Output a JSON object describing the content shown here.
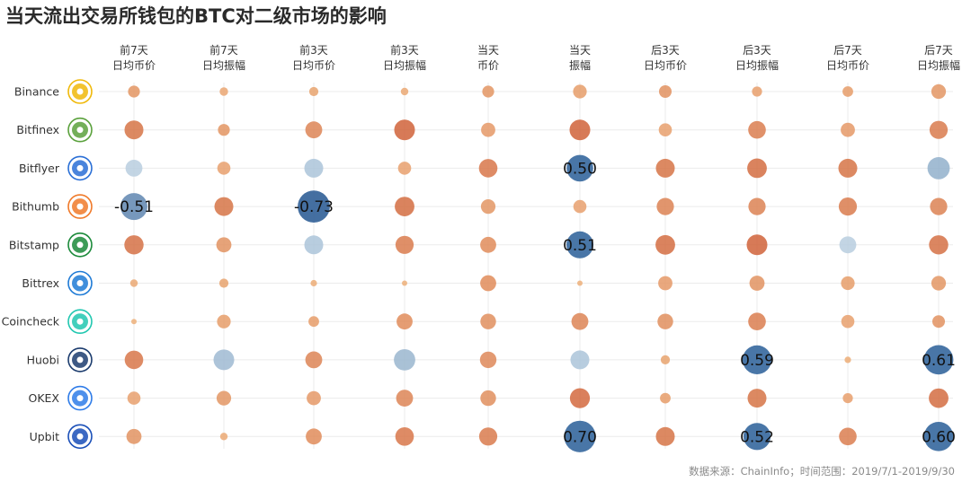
{
  "title": "当天流出交易所钱包的BTC对二级市场的影响",
  "source": "数据来源：ChainInfo；时间范围：2019/7/1-2019/9/30",
  "chart_data": {
    "type": "heatmap",
    "title": "当天流出交易所钱包的BTC对二级市场的影响",
    "columns": [
      {
        "lines": [
          "前7天",
          "日均币价"
        ]
      },
      {
        "lines": [
          "前7天",
          "日均振幅"
        ]
      },
      {
        "lines": [
          "前3天",
          "日均币价"
        ]
      },
      {
        "lines": [
          "前3天",
          "日均振幅"
        ]
      },
      {
        "lines": [
          "当天",
          "币价"
        ]
      },
      {
        "lines": [
          "当天",
          "振幅"
        ]
      },
      {
        "lines": [
          "后3天",
          "日均币价"
        ]
      },
      {
        "lines": [
          "后3天",
          "日均振幅"
        ]
      },
      {
        "lines": [
          "后7天",
          "日均币价"
        ]
      },
      {
        "lines": [
          "后7天",
          "日均振幅"
        ]
      }
    ],
    "rows": [
      {
        "name": "Binance",
        "icon": "binance-logo-icon",
        "icon_color": "#f0b90b",
        "values": [
          0.1,
          0.05,
          0.06,
          0.04,
          0.1,
          0.13,
          0.11,
          0.07,
          0.08,
          0.15
        ]
      },
      {
        "name": "Bitfinex",
        "icon": "bitfinex-logo-icon",
        "icon_color": "#5aa13c",
        "values": [
          0.25,
          0.1,
          0.2,
          0.3,
          0.14,
          0.3,
          0.12,
          0.22,
          0.14,
          0.23
        ]
      },
      {
        "name": "Bitflyer",
        "icon": "bitflyer-logo-icon",
        "icon_color": "#2a6fd6",
        "values": [
          -0.2,
          0.12,
          -0.25,
          0.12,
          0.24,
          0.5,
          0.25,
          0.27,
          0.25,
          -0.35
        ]
      },
      {
        "name": "Bithumb",
        "icon": "bithumb-logo-icon",
        "icon_color": "#f07a2a",
        "values": [
          -0.51,
          0.25,
          -0.73,
          0.27,
          0.15,
          0.12,
          0.21,
          0.21,
          0.23,
          0.21
        ]
      },
      {
        "name": "Bitstamp",
        "icon": "bitstamp-logo-icon",
        "icon_color": "#1b8a3a",
        "values": [
          0.26,
          0.16,
          -0.25,
          0.23,
          0.18,
          0.51,
          0.27,
          0.3,
          -0.2,
          0.26
        ]
      },
      {
        "name": "Bittrex",
        "icon": "bittrex-logo-icon",
        "icon_color": "#1f7bd6",
        "values": [
          0.04,
          0.06,
          0.03,
          0.02,
          0.18,
          0.02,
          0.14,
          0.16,
          0.13,
          0.15
        ]
      },
      {
        "name": "Coincheck",
        "icon": "coincheck-logo-icon",
        "icon_color": "#21c7b0",
        "values": [
          0.02,
          0.13,
          0.08,
          0.18,
          0.17,
          0.2,
          0.17,
          0.22,
          0.12,
          0.11
        ]
      },
      {
        "name": "Huobi",
        "icon": "huobi-logo-icon",
        "icon_color": "#1c3c6e",
        "values": [
          0.24,
          -0.3,
          0.2,
          -0.32,
          0.19,
          -0.25,
          0.06,
          0.59,
          0.03,
          0.61
        ]
      },
      {
        "name": "OKEX",
        "icon": "okex-logo-icon",
        "icon_color": "#2f7ce8",
        "values": [
          0.12,
          0.15,
          0.14,
          0.2,
          0.17,
          0.28,
          0.08,
          0.25,
          0.07,
          0.27
        ]
      },
      {
        "name": "Upbit",
        "icon": "upbit-logo-icon",
        "icon_color": "#1a4fb8",
        "values": [
          0.16,
          0.04,
          0.18,
          0.24,
          0.23,
          0.7,
          0.25,
          0.52,
          0.22,
          0.6
        ]
      }
    ],
    "label_threshold": 0.45,
    "colors": {
      "positive_low": "#f7c98f",
      "positive_high": "#c9512a",
      "negative_low": "#c4d8e6",
      "negative_high": "#2f5f96",
      "large_positive": "#3a6a9f",
      "gridline": "#ebebeb"
    }
  }
}
